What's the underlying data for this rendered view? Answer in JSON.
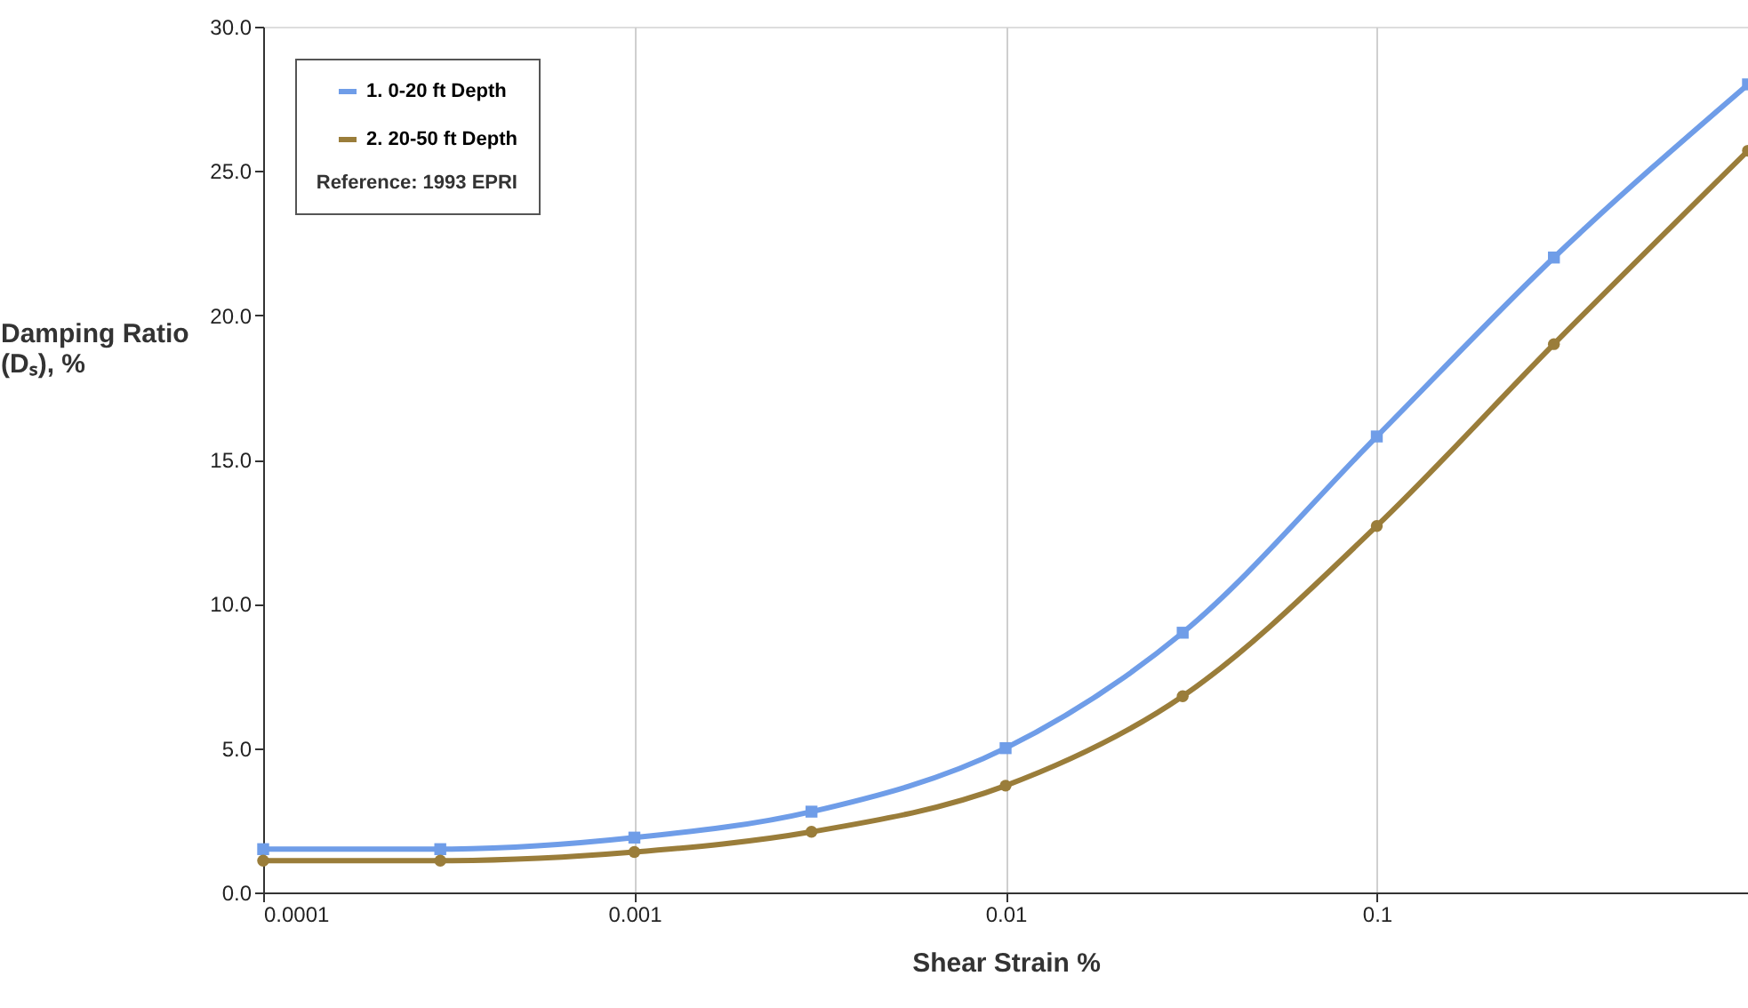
{
  "chart_data": {
    "type": "line",
    "xlabel": "Shear Strain %",
    "ylabel": "Damping Ratio (Dₛ), %",
    "x": [
      0.0001,
      0.0003,
      0.001,
      0.003,
      0.01,
      0.03,
      0.1,
      0.3,
      1
    ],
    "series": [
      {
        "name": "1. 0-20 ft Depth",
        "color": "#6f9de8",
        "marker": "square",
        "values": [
          1.5,
          1.5,
          1.9,
          2.8,
          5.0,
          9.0,
          15.8,
          22.0,
          28.0
        ]
      },
      {
        "name": "2. 20-50 ft Depth",
        "color": "#9a7d3a",
        "marker": "circle",
        "values": [
          1.1,
          1.1,
          1.4,
          2.1,
          3.7,
          6.8,
          12.7,
          19.0,
          25.7
        ]
      }
    ],
    "log": "x",
    "xlim": [
      0.0001,
      1
    ],
    "xticks": [
      0.0001,
      0.001,
      0.01,
      0.1
    ],
    "ylim": [
      0,
      30
    ],
    "yticks": [
      {
        "value": 0,
        "label": "0.0"
      },
      {
        "value": 5,
        "label": "5.0"
      },
      {
        "value": 10,
        "label": "10.0"
      },
      {
        "value": 15,
        "label": "15.0"
      },
      {
        "value": 20,
        "label": "20.0"
      },
      {
        "value": 25,
        "label": "25.0"
      },
      {
        "value": 30,
        "label": "30.0"
      }
    ],
    "grid": "x",
    "legend": "top left",
    "line_style": "solid",
    "annotations": [
      "Reference: 1993 EPRI"
    ]
  }
}
